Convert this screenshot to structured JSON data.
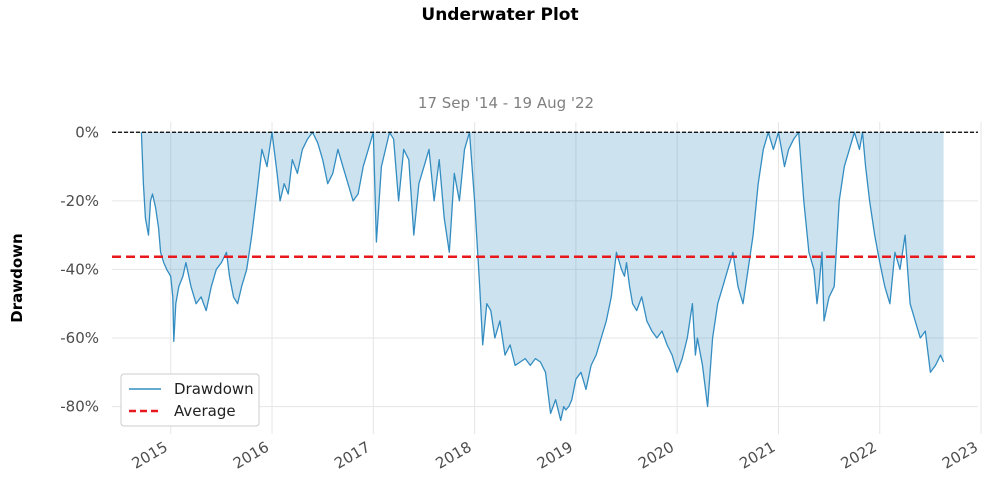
{
  "chart_data": {
    "type": "area",
    "title": "Underwater Plot",
    "subtitle": "17 Sep '14 - 19 Aug '22",
    "xlabel": "",
    "ylabel": "Drawdown",
    "xlim": [
      2014.42,
      2022.97
    ],
    "ylim": [
      -88,
      3
    ],
    "y_ticks": [
      0,
      -20,
      -40,
      -60,
      -80
    ],
    "y_tick_labels": [
      "0%",
      "-20%",
      "-40%",
      "-60%",
      "-80%"
    ],
    "x_ticks": [
      2015,
      2016,
      2017,
      2018,
      2019,
      2020,
      2021,
      2022,
      2023
    ],
    "x_tick_labels": [
      "2015",
      "2016",
      "2017",
      "2018",
      "2019",
      "2020",
      "2021",
      "2022",
      "2023"
    ],
    "grid": true,
    "legend_position": "lower-left",
    "colors": {
      "line": "#348dc1",
      "fill": "#348dc1",
      "average": "#e8191c",
      "zero": "#000000",
      "grid": "#e6e6e6"
    },
    "reference_lines": [
      {
        "name": "Average",
        "y": -36.3,
        "style": "dashed"
      },
      {
        "name": "",
        "y": 0,
        "style": "dashed"
      }
    ],
    "series": [
      {
        "name": "Drawdown",
        "x": [
          2014.71,
          2014.73,
          2014.75,
          2014.78,
          2014.8,
          2014.82,
          2014.85,
          2014.88,
          2014.9,
          2014.93,
          2014.96,
          2015.0,
          2015.02,
          2015.03,
          2015.05,
          2015.08,
          2015.12,
          2015.15,
          2015.2,
          2015.25,
          2015.3,
          2015.35,
          2015.4,
          2015.45,
          2015.5,
          2015.55,
          2015.58,
          2015.62,
          2015.66,
          2015.7,
          2015.75,
          2015.8,
          2015.85,
          2015.9,
          2015.95,
          2016.0,
          2016.05,
          2016.08,
          2016.12,
          2016.16,
          2016.2,
          2016.25,
          2016.3,
          2016.35,
          2016.4,
          2016.45,
          2016.5,
          2016.55,
          2016.6,
          2016.65,
          2016.7,
          2016.75,
          2016.8,
          2016.85,
          2016.9,
          2016.95,
          2017.0,
          2017.03,
          2017.08,
          2017.12,
          2017.16,
          2017.2,
          2017.25,
          2017.3,
          2017.35,
          2017.4,
          2017.45,
          2017.5,
          2017.55,
          2017.6,
          2017.65,
          2017.7,
          2017.75,
          2017.8,
          2017.85,
          2017.9,
          2017.95,
          2018.0,
          2018.05,
          2018.08,
          2018.12,
          2018.16,
          2018.2,
          2018.25,
          2018.3,
          2018.35,
          2018.4,
          2018.45,
          2018.5,
          2018.55,
          2018.6,
          2018.65,
          2018.7,
          2018.75,
          2018.8,
          2018.85,
          2018.88,
          2018.9,
          2018.93,
          2018.96,
          2019.0,
          2019.05,
          2019.1,
          2019.15,
          2019.2,
          2019.25,
          2019.3,
          2019.35,
          2019.4,
          2019.45,
          2019.48,
          2019.5,
          2019.53,
          2019.56,
          2019.6,
          2019.65,
          2019.7,
          2019.75,
          2019.8,
          2019.85,
          2019.9,
          2019.95,
          2020.0,
          2020.05,
          2020.1,
          2020.15,
          2020.18,
          2020.2,
          2020.25,
          2020.3,
          2020.35,
          2020.4,
          2020.45,
          2020.5,
          2020.55,
          2020.6,
          2020.65,
          2020.7,
          2020.75,
          2020.8,
          2020.85,
          2020.9,
          2020.95,
          2021.0,
          2021.03,
          2021.06,
          2021.1,
          2021.15,
          2021.2,
          2021.25,
          2021.3,
          2021.35,
          2021.38,
          2021.4,
          2021.43,
          2021.45,
          2021.5,
          2021.55,
          2021.6,
          2021.65,
          2021.7,
          2021.75,
          2021.8,
          2021.83,
          2021.86,
          2021.9,
          2021.95,
          2022.0,
          2022.05,
          2022.1,
          2022.15,
          2022.2,
          2022.25,
          2022.3,
          2022.35,
          2022.4,
          2022.45,
          2022.5,
          2022.55,
          2022.6,
          2022.63
        ],
        "values": [
          0,
          -15,
          -25,
          -30,
          -20,
          -18,
          -22,
          -28,
          -35,
          -38,
          -40,
          -42,
          -48,
          -61,
          -50,
          -45,
          -42,
          -38,
          -45,
          -50,
          -48,
          -52,
          -45,
          -40,
          -38,
          -35,
          -42,
          -48,
          -50,
          -45,
          -40,
          -30,
          -18,
          -5,
          -10,
          0,
          -12,
          -20,
          -15,
          -18,
          -8,
          -12,
          -5,
          -2,
          0,
          -3,
          -8,
          -15,
          -12,
          -5,
          -10,
          -15,
          -20,
          -18,
          -10,
          -5,
          0,
          -32,
          -10,
          -5,
          0,
          -2,
          -20,
          -5,
          -8,
          -30,
          -15,
          -10,
          -5,
          -20,
          -8,
          -25,
          -35,
          -12,
          -20,
          -5,
          0,
          -20,
          -45,
          -62,
          -50,
          -52,
          -60,
          -55,
          -65,
          -62,
          -68,
          -67,
          -66,
          -68,
          -66,
          -67,
          -70,
          -82,
          -78,
          -84,
          -80,
          -81,
          -80,
          -78,
          -72,
          -70,
          -75,
          -68,
          -65,
          -60,
          -55,
          -48,
          -35,
          -40,
          -42,
          -38,
          -45,
          -50,
          -52,
          -48,
          -55,
          -58,
          -60,
          -58,
          -62,
          -65,
          -70,
          -66,
          -60,
          -50,
          -65,
          -60,
          -68,
          -80,
          -60,
          -50,
          -45,
          -40,
          -35,
          -45,
          -50,
          -40,
          -30,
          -15,
          -5,
          0,
          -5,
          0,
          -5,
          -10,
          -5,
          -2,
          0,
          -20,
          -35,
          -40,
          -50,
          -45,
          -35,
          -55,
          -48,
          -45,
          -20,
          -10,
          -5,
          0,
          -5,
          0,
          -10,
          -20,
          -30,
          -38,
          -45,
          -50,
          -35,
          -40,
          -30,
          -50,
          -55,
          -60,
          -58,
          -70,
          -68,
          -65,
          -67
        ]
      }
    ]
  }
}
